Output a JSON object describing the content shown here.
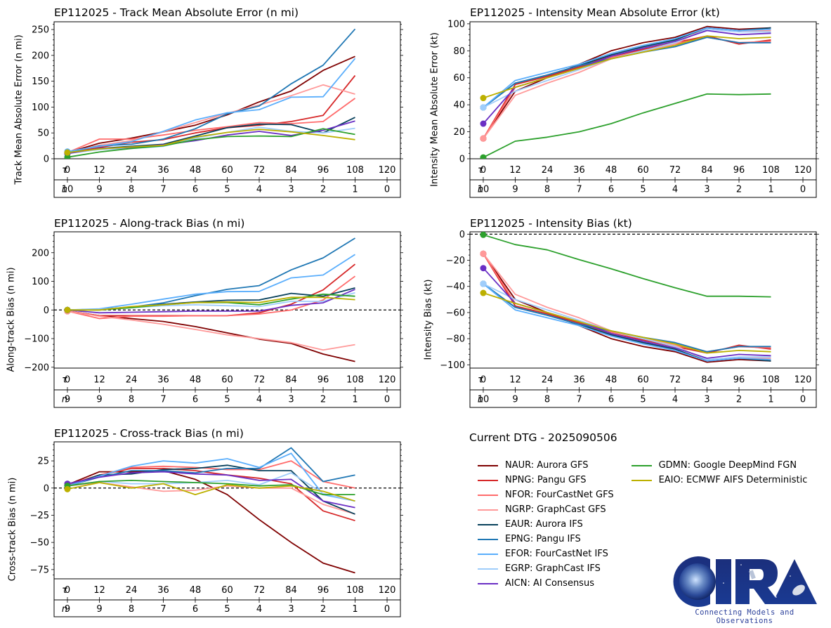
{
  "tau_label": "τ",
  "n_label": "n",
  "tau_ticks": [
    0,
    12,
    24,
    36,
    48,
    60,
    72,
    84,
    96,
    108,
    120
  ],
  "models": [
    {
      "id": "NAUR",
      "label": "NAUR: Aurora GFS",
      "color": "#7f0000"
    },
    {
      "id": "NPNG",
      "label": "NPNG: Pangu GFS",
      "color": "#d62728"
    },
    {
      "id": "NFOR",
      "label": "NFOR: FourCastNet GFS",
      "color": "#ff6b6b"
    },
    {
      "id": "NGRP",
      "label": "NGRP: GraphCast GFS",
      "color": "#ff9999"
    },
    {
      "id": "EAUR",
      "label": "EAUR: Aurora IFS",
      "color": "#08415c"
    },
    {
      "id": "EPNG",
      "label": "EPNG: Pangu IFS",
      "color": "#1f77b4"
    },
    {
      "id": "EFOR",
      "label": "EFOR: FourCastNet IFS",
      "color": "#5aaefc"
    },
    {
      "id": "EGRP",
      "label": "EGRP: GraphCast IFS",
      "color": "#9fcdfb"
    },
    {
      "id": "AICN",
      "label": "AICN: AI Consensus",
      "color": "#6a2fc4"
    },
    {
      "id": "GDMN",
      "label": "GDMN: Google DeepMind FGN",
      "color": "#2ca02c"
    },
    {
      "id": "EAIO",
      "label": "EAIO: ECMWF AIFS Deterministic",
      "color": "#bcb000"
    }
  ],
  "legend": {
    "title": "Current DTG - 2025090506",
    "columns": [
      [
        "NAUR",
        "NPNG",
        "NFOR",
        "NGRP",
        "EAUR",
        "EPNG",
        "EFOR",
        "EGRP",
        "AICN"
      ],
      [
        "GDMN",
        "EAIO"
      ]
    ]
  },
  "logo": {
    "text": "CIRA",
    "tagline": "Connecting Models and Observations"
  },
  "chart_data": [
    {
      "id": "track-mae",
      "type": "line",
      "title": "EP112025 - Track Mean Absolute Error (n mi)",
      "xlabel": "",
      "ylabel": "Track Mean Absolute Error (n mi)",
      "x": [
        0,
        12,
        24,
        36,
        48,
        60,
        72,
        84,
        96,
        108
      ],
      "xlim": [
        -5,
        125
      ],
      "ylim": [
        0,
        265
      ],
      "yticks": [
        0,
        50,
        100,
        150,
        200,
        250
      ],
      "zero_line": false,
      "n_counts": [
        10,
        9,
        8,
        7,
        6,
        5,
        4,
        3,
        2,
        1,
        0
      ],
      "series": [
        {
          "name": "NAUR",
          "values": [
            12,
            30,
            40,
            52,
            65,
            85,
            110,
            131,
            171,
            198
          ]
        },
        {
          "name": "NPNG",
          "values": [
            12,
            22,
            32,
            37,
            50,
            60,
            65,
            72,
            84,
            161
          ]
        },
        {
          "name": "NFOR",
          "values": [
            12,
            38,
            38,
            46,
            55,
            62,
            70,
            68,
            72,
            117
          ]
        },
        {
          "name": "NGRP",
          "values": [
            12,
            26,
            35,
            52,
            70,
            88,
            104,
            122,
            143,
            125
          ]
        },
        {
          "name": "EAUR",
          "values": [
            10,
            20,
            24,
            28,
            44,
            60,
            67,
            66,
            50,
            80
          ]
        },
        {
          "name": "EPNG",
          "values": [
            12,
            25,
            28,
            38,
            58,
            87,
            102,
            145,
            181,
            251
          ]
        },
        {
          "name": "EFOR",
          "values": [
            14,
            24,
            33,
            53,
            75,
            89,
            95,
            119,
            120,
            194
          ]
        },
        {
          "name": "EGRP",
          "values": [
            10,
            18,
            20,
            24,
            40,
            51,
            61,
            53,
            50,
            59
          ]
        },
        {
          "name": "AICN",
          "values": [
            10,
            20,
            22,
            27,
            35,
            46,
            53,
            45,
            55,
            73
          ]
        },
        {
          "name": "GDMN",
          "values": [
            3,
            13,
            20,
            25,
            37,
            43,
            44,
            43,
            58,
            47
          ]
        },
        {
          "name": "EAIO",
          "values": [
            12,
            19,
            23,
            26,
            42,
            51,
            57,
            52,
            45,
            37
          ]
        }
      ]
    },
    {
      "id": "intensity-mae",
      "type": "line",
      "title": "EP112025 - Intensity Mean Absolute Error (kt)",
      "xlabel": "",
      "ylabel": "Intensity Mean Absolute Error (kt)",
      "x": [
        0,
        12,
        24,
        36,
        48,
        60,
        72,
        84,
        96,
        108
      ],
      "xlim": [
        -5,
        125
      ],
      "ylim": [
        0,
        101.5
      ],
      "yticks": [
        0,
        20,
        40,
        60,
        80,
        100
      ],
      "zero_line": false,
      "n_counts": [
        10,
        9,
        8,
        7,
        6,
        5,
        4,
        3,
        2,
        1,
        0
      ],
      "series": [
        {
          "name": "NAUR",
          "values": [
            15,
            50,
            60,
            70,
            80,
            86,
            90,
            98,
            96,
            97
          ]
        },
        {
          "name": "NPNG",
          "values": [
            15,
            55,
            61,
            68,
            76,
            81,
            86,
            91,
            85,
            88
          ]
        },
        {
          "name": "NFOR",
          "values": [
            15,
            53,
            60,
            67,
            75,
            80,
            85,
            90,
            86,
            87
          ]
        },
        {
          "name": "NGRP",
          "values": [
            15,
            47,
            56,
            64,
            74,
            80,
            85,
            97,
            95,
            95
          ]
        },
        {
          "name": "EAUR",
          "values": [
            38,
            56,
            62,
            69,
            77,
            83,
            88,
            97,
            95,
            97
          ]
        },
        {
          "name": "EPNG",
          "values": [
            38,
            56,
            62,
            69,
            74,
            79,
            83,
            90,
            86,
            86
          ]
        },
        {
          "name": "EFOR",
          "values": [
            38,
            58,
            64,
            70,
            78,
            84,
            89,
            97,
            95,
            96
          ]
        },
        {
          "name": "EGRP",
          "values": [
            38,
            50,
            58,
            66,
            74,
            80,
            86,
            96,
            94,
            94
          ]
        },
        {
          "name": "AICN",
          "values": [
            26,
            53,
            60,
            67,
            76,
            82,
            87,
            95,
            92,
            93
          ]
        },
        {
          "name": "GDMN",
          "values": [
            1,
            13,
            16,
            20,
            26,
            34,
            41,
            48,
            47.5,
            48
          ]
        },
        {
          "name": "EAIO",
          "values": [
            45,
            53,
            60,
            67,
            74,
            79,
            84,
            91,
            89,
            90
          ]
        }
      ]
    },
    {
      "id": "along-track-bias",
      "type": "line",
      "title": "EP112025 - Along-track Bias (n mi)",
      "xlabel": "",
      "ylabel": "Along-track Bias (n mi)",
      "x": [
        0,
        12,
        24,
        36,
        48,
        60,
        72,
        84,
        96,
        108
      ],
      "xlim": [
        -5,
        125
      ],
      "ylim": [
        -203,
        273
      ],
      "yticks": [
        -200,
        -100,
        0,
        100,
        200
      ],
      "zero_line": true,
      "n_counts": [
        9,
        9,
        8,
        7,
        6,
        5,
        4,
        3,
        2,
        1,
        0
      ],
      "series": [
        {
          "name": "NAUR",
          "values": [
            -4,
            -20,
            -30,
            -40,
            -58,
            -80,
            -102,
            -117,
            -154,
            -180
          ]
        },
        {
          "name": "NPNG",
          "values": [
            -4,
            -20,
            -20,
            -20,
            -20,
            -20,
            -10,
            20,
            70,
            160
          ]
        },
        {
          "name": "NFOR",
          "values": [
            -4,
            -30,
            -22,
            -22,
            -20,
            -20,
            -14,
            0,
            35,
            118
          ]
        },
        {
          "name": "NGRP",
          "values": [
            -4,
            -22,
            -35,
            -50,
            -68,
            -87,
            -100,
            -114,
            -140,
            -121
          ]
        },
        {
          "name": "EAUR",
          "values": [
            0,
            2,
            10,
            20,
            28,
            34,
            35,
            58,
            48,
            77
          ]
        },
        {
          "name": "EPNG",
          "values": [
            0,
            2,
            10,
            25,
            50,
            72,
            85,
            140,
            182,
            251
          ]
        },
        {
          "name": "EFOR",
          "values": [
            0,
            4,
            20,
            38,
            55,
            64,
            65,
            112,
            122,
            194
          ]
        },
        {
          "name": "EGRP",
          "values": [
            0,
            2,
            8,
            15,
            18,
            15,
            12,
            30,
            30,
            60
          ]
        },
        {
          "name": "AICN",
          "values": [
            0,
            -10,
            -8,
            -6,
            -4,
            -4,
            -4,
            16,
            25,
            72
          ]
        },
        {
          "name": "GDMN",
          "values": [
            0,
            0,
            8,
            18,
            26,
            26,
            18,
            38,
            55,
            48
          ]
        },
        {
          "name": "EAIO",
          "values": [
            0,
            0,
            12,
            18,
            26,
            28,
            26,
            44,
            44,
            36
          ]
        }
      ]
    },
    {
      "id": "intensity-bias",
      "type": "line",
      "title": "EP112025 - Intensity Bias (kt)",
      "xlabel": "",
      "ylabel": "Intensity Bias (kt)",
      "x": [
        0,
        12,
        24,
        36,
        48,
        60,
        72,
        84,
        96,
        108
      ],
      "xlim": [
        -5,
        125
      ],
      "ylim": [
        -102.5,
        1.8
      ],
      "yticks": [
        -100,
        -80,
        -60,
        -40,
        -20,
        0
      ],
      "zero_line": true,
      "n_counts": [
        10,
        9,
        8,
        7,
        6,
        5,
        4,
        3,
        2,
        1,
        0
      ],
      "series": [
        {
          "name": "NAUR",
          "values": [
            -15,
            -50,
            -60,
            -70,
            -80,
            -86,
            -90,
            -98,
            -96,
            -97
          ]
        },
        {
          "name": "NPNG",
          "values": [
            -15,
            -55,
            -61,
            -68,
            -76,
            -81,
            -86,
            -91,
            -85,
            -88
          ]
        },
        {
          "name": "NFOR",
          "values": [
            -15,
            -53,
            -60,
            -67,
            -75,
            -80,
            -85,
            -90,
            -86,
            -87
          ]
        },
        {
          "name": "NGRP",
          "values": [
            -15,
            -46,
            -56,
            -64,
            -74,
            -80,
            -85,
            -97,
            -95,
            -95
          ]
        },
        {
          "name": "EAUR",
          "values": [
            -38,
            -56,
            -62,
            -69,
            -77,
            -83,
            -88,
            -97,
            -95,
            -97
          ]
        },
        {
          "name": "EPNG",
          "values": [
            -38,
            -56,
            -62,
            -69,
            -74,
            -79,
            -83,
            -90,
            -86,
            -86
          ]
        },
        {
          "name": "EFOR",
          "values": [
            -38,
            -58,
            -64,
            -70,
            -78,
            -84,
            -89,
            -97,
            -95,
            -96
          ]
        },
        {
          "name": "EGRP",
          "values": [
            -38,
            -50,
            -58,
            -66,
            -74,
            -80,
            -86,
            -96,
            -94,
            -94
          ]
        },
        {
          "name": "AICN",
          "values": [
            -26,
            -53,
            -60,
            -67,
            -76,
            -82,
            -87,
            -95,
            -92,
            -93
          ]
        },
        {
          "name": "GDMN",
          "values": [
            -0.5,
            -8,
            -12,
            -19.5,
            -26.5,
            -34,
            -41,
            -47.5,
            -47.5,
            -48
          ]
        },
        {
          "name": "EAIO",
          "values": [
            -45,
            -53,
            -60,
            -67,
            -74,
            -79,
            -84,
            -91,
            -89,
            -90
          ]
        }
      ]
    },
    {
      "id": "cross-track-bias",
      "type": "line",
      "title": "EP112025 - Cross-track Bias (n mi)",
      "xlabel": "",
      "ylabel": "Cross-track Bias (n mi)",
      "x": [
        0,
        12,
        24,
        36,
        48,
        60,
        72,
        84,
        96,
        108
      ],
      "xlim": [
        -5,
        125
      ],
      "ylim": [
        -83.5,
        42.5
      ],
      "yticks": [
        -75,
        -50,
        -25,
        0,
        25
      ],
      "zero_line": true,
      "n_counts": [
        9,
        9,
        8,
        7,
        6,
        5,
        4,
        3,
        2,
        1,
        0
      ],
      "series": [
        {
          "name": "NAUR",
          "values": [
            3,
            15,
            15,
            16,
            8,
            -6,
            -29,
            -50,
            -69,
            -78
          ]
        },
        {
          "name": "NPNG",
          "values": [
            3,
            12,
            18,
            18,
            16,
            12,
            9,
            4,
            -21,
            -30
          ]
        },
        {
          "name": "NFOR",
          "values": [
            3,
            12,
            19,
            20,
            19,
            17,
            17,
            25,
            6,
            0
          ]
        },
        {
          "name": "NGRP",
          "values": [
            2,
            5,
            1,
            -3,
            -2,
            2,
            0,
            0,
            -15,
            -24
          ]
        },
        {
          "name": "EAUR",
          "values": [
            2,
            12,
            13,
            17,
            18,
            21,
            16,
            16,
            -12,
            -24
          ]
        },
        {
          "name": "EPNG",
          "values": [
            2,
            10,
            16,
            16,
            14,
            18,
            18,
            37,
            6,
            12
          ]
        },
        {
          "name": "EFOR",
          "values": [
            2,
            11,
            20,
            25,
            23,
            27,
            19,
            32,
            -6,
            -12
          ]
        },
        {
          "name": "EGRP",
          "values": [
            2,
            6,
            4,
            4,
            5,
            7,
            3,
            14,
            -5,
            -12
          ]
        },
        {
          "name": "AICN",
          "values": [
            4,
            10,
            14,
            15,
            13,
            12,
            7,
            8,
            -12,
            -18
          ]
        },
        {
          "name": "GDMN",
          "values": [
            2,
            6,
            7,
            6,
            5,
            4,
            2,
            3,
            -6,
            -6
          ]
        },
        {
          "name": "EAIO",
          "values": [
            -1,
            5,
            0,
            4,
            -6,
            3,
            0,
            2,
            -3,
            -12
          ]
        }
      ]
    }
  ]
}
